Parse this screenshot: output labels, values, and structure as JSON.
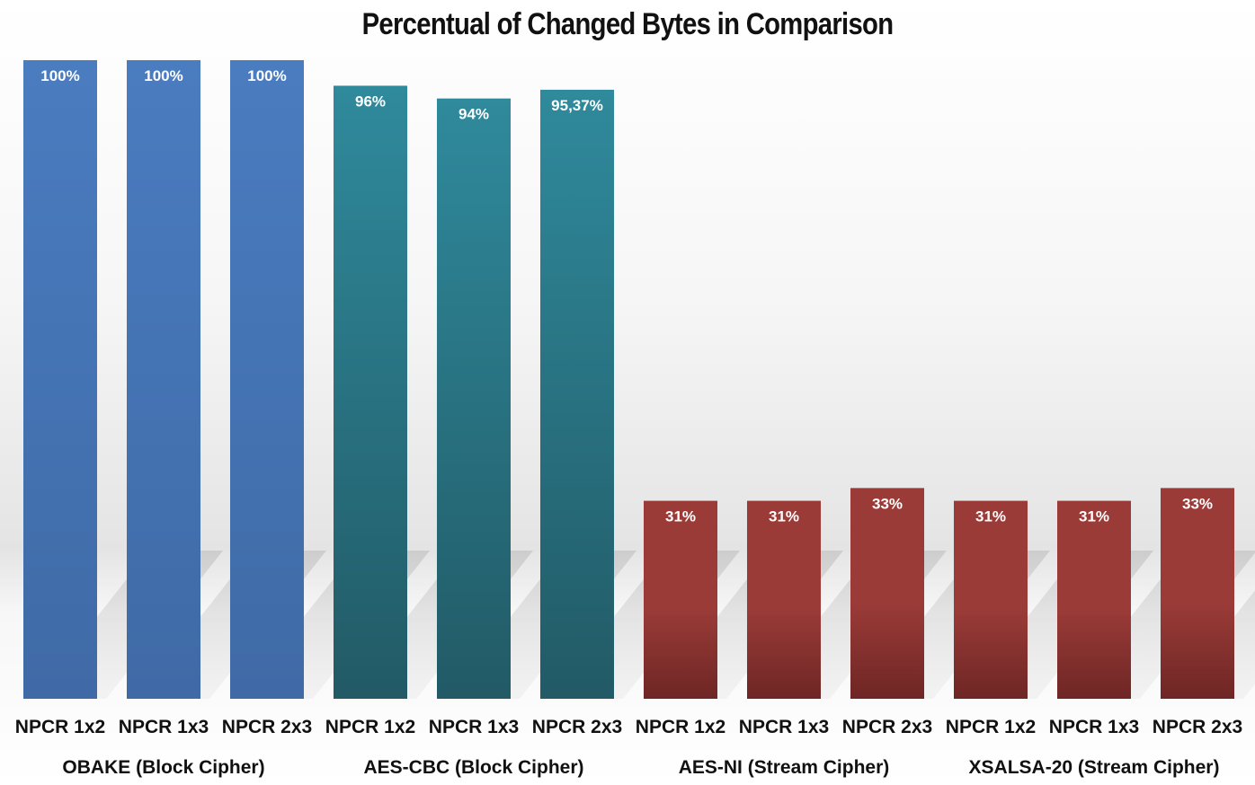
{
  "chart_data": {
    "type": "bar",
    "title": "Percentual of Changed Bytes in Comparison",
    "xlabel": "",
    "ylabel": "",
    "ylim": [
      0,
      100
    ],
    "grid": false,
    "legend": "none",
    "groups": [
      {
        "name": "OBAKE (Block Cipher)",
        "color": "#4a7cc0",
        "color_dark": "#3f6aa6",
        "categories": [
          "NPCR 1x2",
          "NPCR 1x3",
          "NPCR 2x3"
        ],
        "values": [
          100,
          100,
          100
        ],
        "value_labels": [
          "100%",
          "100%",
          "100%"
        ]
      },
      {
        "name": "AES-CBC (Block Cipher)",
        "color": "#2f8a9c",
        "color_dark": "#225a66",
        "categories": [
          "NPCR 1x2",
          "NPCR 1x3",
          "NPCR 2x3"
        ],
        "values": [
          96,
          94,
          95.37
        ],
        "value_labels": [
          "96%",
          "94%",
          "95,37%"
        ]
      },
      {
        "name": "AES-NI (Stream Cipher)",
        "color": "#9a3b38",
        "color_dark": "#6e2624",
        "categories": [
          "NPCR 1x2",
          "NPCR 1x3",
          "NPCR 2x3"
        ],
        "values": [
          31,
          31,
          33
        ],
        "value_labels": [
          "31%",
          "31%",
          "33%"
        ]
      },
      {
        "name": "XSALSA-20  (Stream Cipher)",
        "color": "#9a3b38",
        "color_dark": "#6e2624",
        "categories": [
          "NPCR 1x2",
          "NPCR 1x3",
          "NPCR 2x3"
        ],
        "values": [
          31,
          31,
          33
        ],
        "value_labels": [
          "31%",
          "31%",
          "33%"
        ]
      }
    ]
  }
}
